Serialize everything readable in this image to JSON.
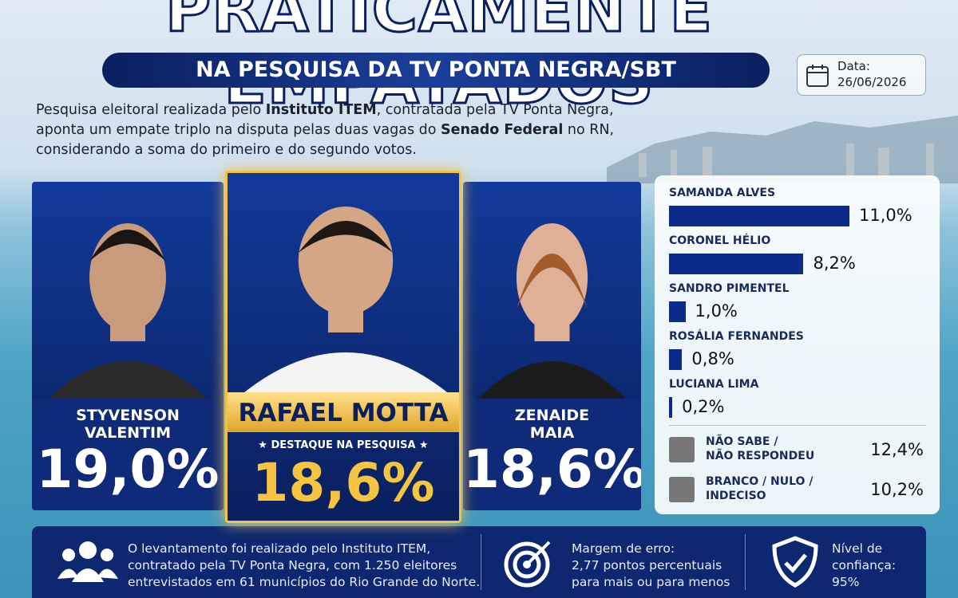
{
  "header": {
    "title": "PRATICAMENTE EMPATADOS",
    "subtitle": "NA PESQUISA DA TV PONTA NEGRA/SBT",
    "date_label": "Data:",
    "date": "26/06/2026"
  },
  "intro": [
    "Pesquisa eleitoral realizada pelo ",
    "Instituto ITEM",
    ", contratada pela TV Ponta Negra,",
    "aponta um empate triplo na disputa pelas duas vagas do ",
    "Senado Federal",
    " no RN,",
    "considerando a soma do primeiro e do segundo votos."
  ],
  "candidates": [
    {
      "name": [
        "STYVENSON",
        "VALENTIM"
      ],
      "value": 19.0,
      "label": "19,0%"
    },
    {
      "name": [
        "RAFAEL MOTTA"
      ],
      "badge": "★ DESTAQUE NA PESQUISA ★",
      "value": 18.6,
      "label": "18,6%"
    },
    {
      "name": [
        "ZENAIDE",
        "MAIA"
      ],
      "value": 18.6,
      "label": "18,6%"
    }
  ],
  "bars": {
    "color": "#0b2a8a",
    "items": [
      {
        "name": "SAMANDA ALVES",
        "value": 11.0,
        "label": "11,0%"
      },
      {
        "name": "CORONEL HÉLIO",
        "value": 8.2,
        "label": "8,2%"
      },
      {
        "name": "SANDRO PIMENTEL",
        "value": 1.0,
        "label": "1,0%"
      },
      {
        "name": "ROSÁLIA FERNANDES",
        "value": 0.8,
        "label": "0,8%"
      },
      {
        "name": "LUCIANA LIMA",
        "value": 0.2,
        "label": "0,2%"
      }
    ]
  },
  "others": [
    {
      "name": [
        "NÃO SABE /",
        "NÃO RESPONDEU"
      ],
      "value": 12.4,
      "label": "12,4%"
    },
    {
      "name": [
        "BRANCO / NULO /",
        "INDECISO"
      ],
      "value": 10.2,
      "label": "10,2%"
    }
  ],
  "footer": {
    "method": [
      "O levantamento foi realizado pelo Instituto ITEM,",
      "contratado pela TV Ponta Negra, com 1.250 eleitores",
      "entrevistados em 61 municípios do Rio Grande do Norte."
    ],
    "margin": [
      "Margem de erro:",
      "2,77 pontos percentuais",
      "para mais ou para menos"
    ],
    "confidence": [
      "Nível de",
      "confiança:",
      "95%"
    ]
  }
}
